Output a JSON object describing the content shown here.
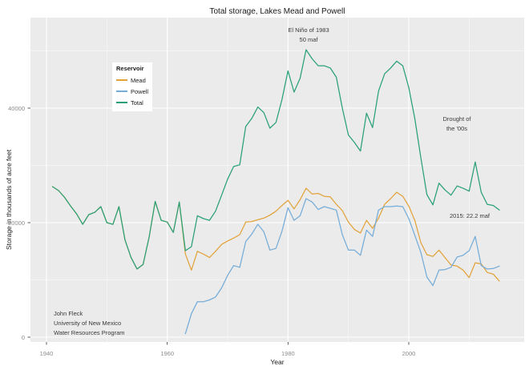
{
  "title": "Total storage, Lakes Mead and Powell",
  "axes": {
    "x_label": "Year",
    "y_label": "Storage in thousands of acre feet",
    "x_tick_labels": [
      "1940",
      "1960",
      "1980",
      "2000"
    ],
    "x_tick_years": [
      1940,
      1960,
      1980,
      2000
    ],
    "y_tick_labels": [
      "0",
      "20000",
      "40000"
    ],
    "y_tick_values": [
      0,
      20000,
      40000
    ],
    "x_minor_years": [
      1950,
      1970,
      1990,
      2010
    ],
    "y_minor_values": [
      10000,
      30000,
      50000
    ]
  },
  "legend": {
    "title": "Reservoir",
    "items": [
      {
        "label": "Mead",
        "color": "#E2A33C"
      },
      {
        "label": "Powell",
        "color": "#75ACD8"
      },
      {
        "label": "Total",
        "color": "#29A078"
      }
    ]
  },
  "annotations": {
    "el_nino_line1": "El Niño of 1983",
    "el_nino_line2": "50 maf",
    "drought_line1": "Drought of",
    "drought_line2": "the '00s",
    "label_2015": "2015: 22.2 maf",
    "attribution_line1": "John Fleck",
    "attribution_line2": "University of New Mexico",
    "attribution_line3": "Water Resources Program"
  },
  "chart_data": {
    "type": "line",
    "title": "Total storage, Lakes Mead and Powell",
    "xlabel": "Year",
    "ylabel": "Storage in thousands of acre feet",
    "x_range_years": [
      1941,
      2015
    ],
    "ylim": [
      0,
      52000
    ],
    "grid": true,
    "legend_position": "inside-top-left",
    "units": "thousands of acre feet",
    "series": [
      {
        "name": "Mead",
        "color": "#E2A33C",
        "start_year": 1941,
        "values": [
          26300,
          25600,
          24400,
          22900,
          21500,
          19700,
          21400,
          21800,
          22800,
          20000,
          19700,
          22800,
          17000,
          13900,
          11900,
          12700,
          17500,
          23700,
          20400,
          20100,
          18300,
          23600,
          14500,
          11700,
          15000,
          14500,
          13900,
          15000,
          16200,
          16800,
          17300,
          17900,
          20100,
          20200,
          20500,
          20800,
          21300,
          22000,
          23000,
          23900,
          22400,
          24000,
          26000,
          25000,
          25100,
          24600,
          24500,
          23200,
          22100,
          20100,
          18800,
          18200,
          20400,
          19000,
          20800,
          23200,
          24200,
          25300,
          24600,
          22900,
          20400,
          16500,
          14400,
          14100,
          15200,
          13900,
          12600,
          12400,
          11700,
          10400,
          13000,
          12800,
          11300,
          11000,
          9800
        ]
      },
      {
        "name": "Powell",
        "color": "#75ACD8",
        "start_year": 1963,
        "values": [
          600,
          4100,
          6200,
          6200,
          6500,
          7000,
          8600,
          10800,
          12500,
          12200,
          16700,
          18000,
          19700,
          18400,
          15200,
          15500,
          18500,
          22600,
          20400,
          21200,
          24200,
          23600,
          22300,
          22800,
          22500,
          22200,
          17900,
          15200,
          15200,
          14300,
          18700,
          17600,
          22200,
          22800,
          22800,
          22900,
          22800,
          20700,
          17800,
          14800,
          10500,
          9000,
          11700,
          11800,
          12200,
          14000,
          14300,
          15100,
          17600,
          12500,
          11900,
          12000,
          12400
        ]
      },
      {
        "name": "Total",
        "color": "#29A078",
        "start_year": 1941,
        "values": [
          26300,
          25600,
          24400,
          22900,
          21500,
          19700,
          21400,
          21800,
          22800,
          20000,
          19700,
          22800,
          17000,
          13900,
          11900,
          12700,
          17500,
          23700,
          20400,
          20100,
          18300,
          23600,
          15100,
          15800,
          21200,
          20700,
          20400,
          22000,
          24800,
          27600,
          29800,
          30100,
          36800,
          38200,
          40200,
          39200,
          36500,
          37500,
          41500,
          46500,
          42800,
          45200,
          50200,
          48600,
          47400,
          47400,
          47000,
          45400,
          40000,
          35300,
          34000,
          32500,
          39100,
          36600,
          43000,
          46000,
          47000,
          48200,
          47400,
          43600,
          38200,
          31300,
          24900,
          23100,
          26900,
          25700,
          24800,
          26400,
          26000,
          25500,
          30600,
          25300,
          23200,
          23000,
          22200
        ]
      }
    ]
  },
  "style": {
    "panel_bg": "#EBEBEB",
    "grid_major": "#FFFFFF",
    "grid_minor": "#F7F7F7",
    "tick_color": "#333333"
  }
}
